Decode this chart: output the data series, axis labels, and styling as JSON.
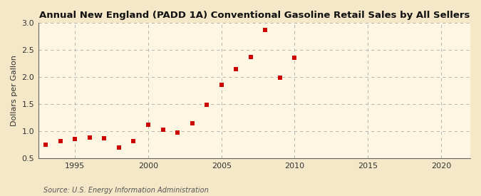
{
  "title": "Annual New England (PADD 1A) Conventional Gasoline Retail Sales by All Sellers",
  "ylabel": "Dollars per Gallon",
  "source": "Source: U.S. Energy Information Administration",
  "fig_bg_color": "#f5e8c8",
  "plot_bg_color": "#fdf6e3",
  "marker_color": "#cc0000",
  "marker": "s",
  "marker_size": 16,
  "xlim": [
    1992.5,
    2022
  ],
  "ylim": [
    0.5,
    3.0
  ],
  "yticks": [
    0.5,
    1.0,
    1.5,
    2.0,
    2.5,
    3.0
  ],
  "xticks": [
    1995,
    2000,
    2005,
    2010,
    2015,
    2020
  ],
  "years": [
    1993,
    1994,
    1995,
    1996,
    1997,
    1998,
    1999,
    2000,
    2001,
    2002,
    2003,
    2004,
    2005,
    2006,
    2007,
    2008,
    2009,
    2010
  ],
  "values": [
    0.755,
    0.822,
    0.857,
    0.88,
    0.875,
    0.705,
    0.82,
    1.125,
    1.03,
    0.975,
    1.155,
    1.485,
    1.855,
    2.15,
    2.37,
    2.87,
    1.99,
    2.36
  ]
}
